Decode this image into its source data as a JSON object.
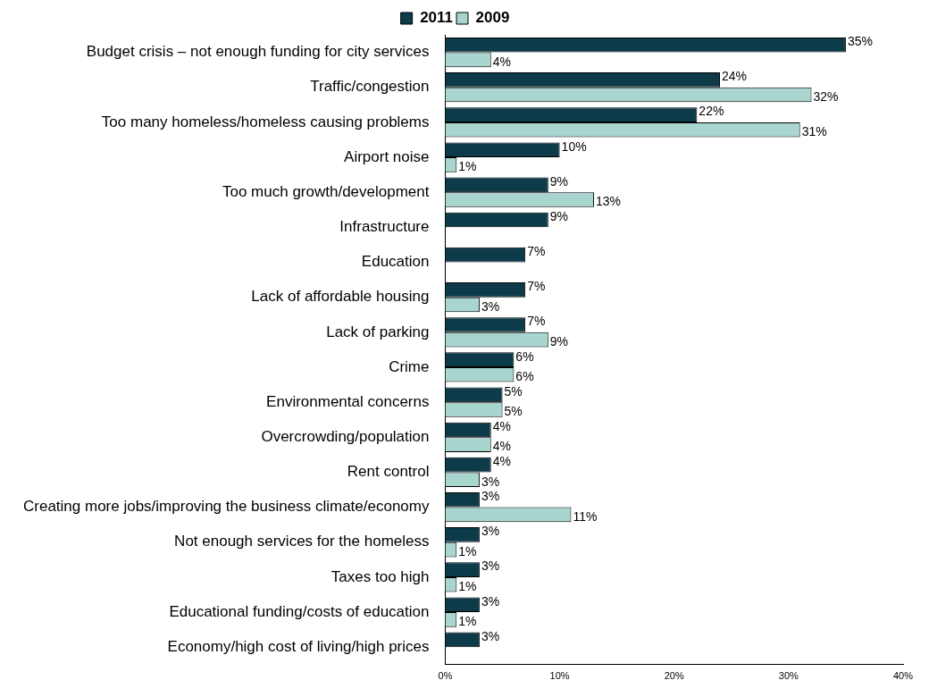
{
  "chart_data": {
    "type": "bar",
    "orientation": "horizontal",
    "legend": "top",
    "categories": [
      "Budget crisis – not enough funding for city services",
      "Traffic/congestion",
      "Too many homeless/homeless causing problems",
      "Airport noise",
      "Too much growth/development",
      "Infrastructure",
      "Education",
      "Lack of affordable housing",
      "Lack of parking",
      "Crime",
      "Environmental concerns",
      "Overcrowding/population",
      "Rent control",
      "Creating more jobs/improving the business climate/economy",
      "Not enough services for the homeless",
      "Taxes too high",
      "Educational funding/costs of education",
      "Economy/high cost of living/high prices"
    ],
    "series": [
      {
        "name": "2011",
        "color": "#0d3b4a",
        "values": [
          35,
          24,
          22,
          10,
          9,
          9,
          7,
          7,
          7,
          6,
          5,
          4,
          4,
          3,
          3,
          3,
          3,
          3
        ],
        "value_labels": [
          "35%",
          "24%",
          "22%",
          "10%",
          "9%",
          "9%",
          "7%",
          "7%",
          "7%",
          "6%",
          "5%",
          "4%",
          "4%",
          "3%",
          "3%",
          "3%",
          "3%",
          "3%"
        ]
      },
      {
        "name": "2009",
        "color": "#a8d6cf",
        "values": [
          4,
          32,
          31,
          1,
          13,
          null,
          null,
          3,
          9,
          6,
          5,
          4,
          3,
          11,
          1,
          1,
          1,
          null
        ],
        "value_labels": [
          "4%",
          "32%",
          "31%",
          "1%",
          "13%",
          null,
          null,
          "3%",
          "9%",
          "6%",
          "5%",
          "4%",
          "3%",
          "11%",
          "1%",
          "1%",
          "1%",
          null
        ]
      }
    ],
    "xlim": [
      0,
      40
    ],
    "xticks": [
      {
        "value": 0,
        "label": "0%"
      },
      {
        "value": 10,
        "label": "10%"
      },
      {
        "value": 20,
        "label": "20%"
      },
      {
        "value": 30,
        "label": "30%"
      },
      {
        "value": 40,
        "label": "40%"
      }
    ],
    "grid": false
  }
}
